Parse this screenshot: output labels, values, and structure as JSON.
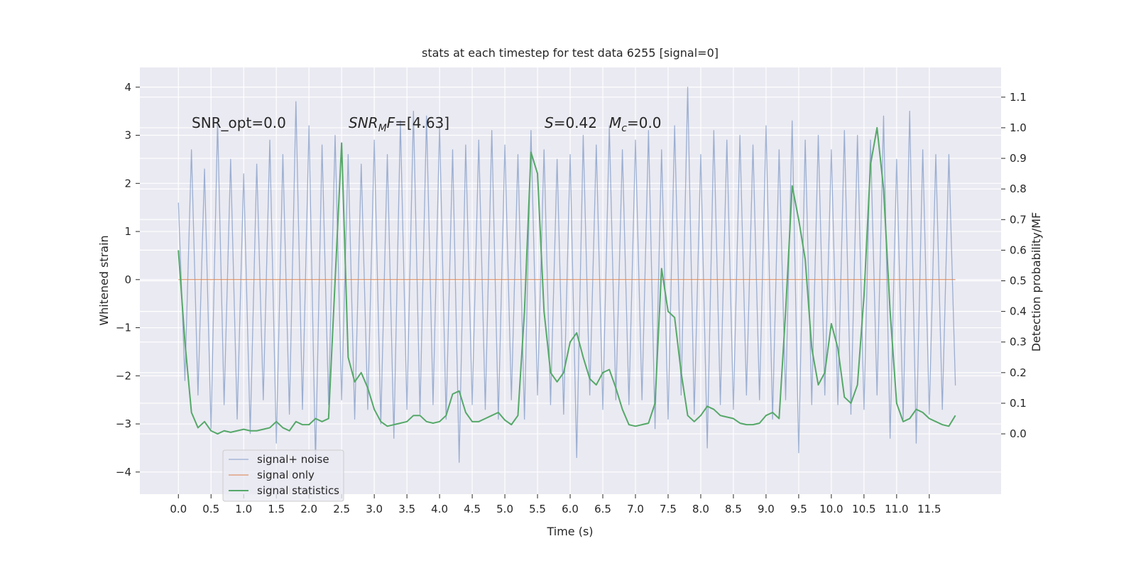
{
  "chart_data": {
    "type": "line",
    "title": "stats at each timestep for test data 6255 [signal=0]",
    "xlabel": "Time (s)",
    "ylabel": "Whitened strain",
    "y2label": "Detection probability/MF",
    "annotations": [
      [
        {
          "text": "SNR_opt=0.0"
        }
      ],
      [
        {
          "text": "SNR",
          "style": "italic"
        },
        {
          "text": "M",
          "style": "italic-sub"
        },
        {
          "text": "F",
          "style": "italic"
        },
        {
          "text": "=[4.63]"
        }
      ],
      [
        {
          "text": "S",
          "style": "italic"
        },
        {
          "text": "=0.42"
        }
      ],
      [
        {
          "text": "M",
          "style": "italic"
        },
        {
          "text": "c",
          "style": "italic-sub"
        },
        {
          "text": "=0.0"
        }
      ]
    ],
    "grid": true,
    "legend_loc": "lower left",
    "xlim": [
      -0.59,
      12.6
    ],
    "ylim": [
      -4.46,
      4.41
    ],
    "y2lim": [
      -0.197,
      1.197
    ],
    "xticks": [
      {
        "value": 0,
        "label": "0.0"
      },
      0.5,
      {
        "value": 1,
        "label": "1.0"
      },
      1.5,
      {
        "value": 2,
        "label": "2.0"
      },
      2.5,
      {
        "value": 3,
        "label": "3.0"
      },
      3.5,
      {
        "value": 4,
        "label": "4.0"
      },
      4.5,
      {
        "value": 5,
        "label": "5.0"
      },
      5.5,
      {
        "value": 6,
        "label": "6.0"
      },
      6.5,
      {
        "value": 7,
        "label": "7.0"
      },
      7.5,
      {
        "value": 8,
        "label": "8.0"
      },
      8.5,
      {
        "value": 9,
        "label": "9.0"
      },
      9.5,
      {
        "value": 10,
        "label": "10.0"
      },
      10.5,
      {
        "value": 11,
        "label": "11.0"
      },
      11.5
    ],
    "yticks": [
      {
        "value": -4,
        "label": "−4"
      },
      {
        "value": -3,
        "label": "−3"
      },
      {
        "value": -2,
        "label": "−2"
      },
      {
        "value": -1,
        "label": "−1"
      },
      0,
      1,
      2,
      3,
      4
    ],
    "y2ticks": [
      {
        "value": 0,
        "label": "0.0"
      },
      0.1,
      0.2,
      0.3,
      0.4,
      0.5,
      0.6,
      0.7,
      0.8,
      0.9,
      {
        "value": 1,
        "label": "1.0"
      },
      1.1
    ],
    "x": [
      0.0,
      0.1,
      0.2,
      0.3,
      0.4,
      0.5,
      0.6,
      0.7,
      0.8,
      0.9,
      1.0,
      1.1,
      1.2,
      1.3,
      1.4,
      1.5,
      1.6,
      1.7,
      1.8,
      1.9,
      2.0,
      2.1,
      2.2,
      2.3,
      2.4,
      2.5,
      2.6,
      2.7,
      2.8,
      2.9,
      3.0,
      3.1,
      3.2,
      3.3,
      3.4,
      3.5,
      3.6,
      3.7,
      3.8,
      3.9,
      4.0,
      4.1,
      4.2,
      4.3,
      4.4,
      4.5,
      4.6,
      4.7,
      4.8,
      4.9,
      5.0,
      5.1,
      5.2,
      5.3,
      5.4,
      5.5,
      5.6,
      5.7,
      5.8,
      5.9,
      6.0,
      6.1,
      6.2,
      6.3,
      6.4,
      6.5,
      6.6,
      6.7,
      6.8,
      6.9,
      7.0,
      7.1,
      7.2,
      7.3,
      7.4,
      7.5,
      7.6,
      7.7,
      7.8,
      7.9,
      8.0,
      8.1,
      8.2,
      8.3,
      8.4,
      8.5,
      8.6,
      8.7,
      8.8,
      8.9,
      9.0,
      9.1,
      9.2,
      9.3,
      9.4,
      9.5,
      9.6,
      9.7,
      9.8,
      9.9,
      10.0,
      10.1,
      10.2,
      10.3,
      10.4,
      10.5,
      10.6,
      10.7,
      10.8,
      10.9,
      11.0,
      11.1,
      11.2,
      11.3,
      11.4,
      11.5,
      11.6,
      11.7,
      11.8,
      11.9
    ],
    "series": [
      {
        "name": "signal+ noise",
        "color": "#4c72b0",
        "values": [
          1.6,
          -2.1,
          2.7,
          -2.4,
          2.3,
          -3.1,
          3.3,
          -2.6,
          2.5,
          -2.9,
          2.2,
          -3.2,
          2.4,
          -2.5,
          2.9,
          -3.4,
          2.6,
          -2.8,
          3.7,
          -2.7,
          3.2,
          -3.8,
          2.8,
          -2.6,
          3.0,
          -2.5,
          2.6,
          -2.9,
          2.4,
          -2.7,
          2.9,
          -3.0,
          2.6,
          -3.3,
          3.3,
          -2.7,
          3.5,
          -2.8,
          3.4,
          -2.6,
          3.2,
          -2.9,
          2.7,
          -3.8,
          2.8,
          -2.6,
          2.9,
          -2.7,
          3.1,
          -2.9,
          2.8,
          -2.5,
          2.6,
          -2.9,
          3.1,
          -2.4,
          2.7,
          -2.6,
          2.5,
          -2.8,
          2.6,
          -3.7,
          3.0,
          -2.4,
          2.8,
          -2.7,
          3.2,
          -2.5,
          2.7,
          -2.6,
          2.9,
          -2.5,
          3.1,
          -3.1,
          2.7,
          -2.9,
          3.2,
          -2.4,
          4.0,
          -2.8,
          2.6,
          -3.5,
          3.1,
          -2.6,
          2.9,
          -2.7,
          3.0,
          -2.4,
          2.8,
          -2.5,
          3.2,
          -2.9,
          2.7,
          -2.5,
          3.3,
          -3.6,
          2.9,
          -2.6,
          3.0,
          -2.4,
          2.7,
          -2.6,
          3.1,
          -2.8,
          3.0,
          -2.7,
          2.9,
          -2.4,
          3.4,
          -3.3,
          2.5,
          -2.9,
          3.5,
          -3.4,
          2.7,
          -2.8,
          2.6,
          -2.7,
          2.6,
          -2.2
        ]
      },
      {
        "name": "signal only",
        "color": "#dd8452",
        "values": [
          0,
          0,
          0,
          0,
          0,
          0,
          0,
          0,
          0,
          0,
          0,
          0,
          0,
          0,
          0,
          0,
          0,
          0,
          0,
          0,
          0,
          0,
          0,
          0,
          0,
          0,
          0,
          0,
          0,
          0,
          0,
          0,
          0,
          0,
          0,
          0,
          0,
          0,
          0,
          0,
          0,
          0,
          0,
          0,
          0,
          0,
          0,
          0,
          0,
          0,
          0,
          0,
          0,
          0,
          0,
          0,
          0,
          0,
          0,
          0,
          0,
          0,
          0,
          0,
          0,
          0,
          0,
          0,
          0,
          0,
          0,
          0,
          0,
          0,
          0,
          0,
          0,
          0,
          0,
          0,
          0,
          0,
          0,
          0,
          0,
          0,
          0,
          0,
          0,
          0,
          0,
          0,
          0,
          0,
          0,
          0,
          0,
          0,
          0,
          0,
          0,
          0,
          0,
          0,
          0,
          0,
          0,
          0,
          0,
          0,
          0,
          0,
          0,
          0,
          0,
          0,
          0,
          0,
          0,
          0
        ]
      },
      {
        "name": "signal statistics",
        "color": "#55a868",
        "axis": "y2",
        "values": [
          0.6,
          0.3,
          0.07,
          0.02,
          0.04,
          0.01,
          0.0,
          0.01,
          0.005,
          0.01,
          0.015,
          0.01,
          0.01,
          0.015,
          0.02,
          0.04,
          0.02,
          0.01,
          0.04,
          0.03,
          0.03,
          0.05,
          0.04,
          0.05,
          0.5,
          0.95,
          0.25,
          0.17,
          0.2,
          0.15,
          0.08,
          0.04,
          0.025,
          0.03,
          0.035,
          0.04,
          0.06,
          0.06,
          0.04,
          0.035,
          0.04,
          0.06,
          0.13,
          0.14,
          0.07,
          0.04,
          0.04,
          0.05,
          0.06,
          0.07,
          0.045,
          0.03,
          0.06,
          0.4,
          0.92,
          0.85,
          0.4,
          0.2,
          0.17,
          0.2,
          0.3,
          0.33,
          0.25,
          0.18,
          0.16,
          0.2,
          0.21,
          0.15,
          0.08,
          0.03,
          0.025,
          0.03,
          0.035,
          0.1,
          0.54,
          0.4,
          0.38,
          0.2,
          0.06,
          0.04,
          0.06,
          0.09,
          0.08,
          0.06,
          0.055,
          0.05,
          0.035,
          0.03,
          0.03,
          0.035,
          0.06,
          0.07,
          0.05,
          0.4,
          0.81,
          0.7,
          0.57,
          0.28,
          0.16,
          0.2,
          0.36,
          0.28,
          0.12,
          0.1,
          0.16,
          0.45,
          0.88,
          1.0,
          0.8,
          0.4,
          0.1,
          0.04,
          0.05,
          0.08,
          0.07,
          0.05,
          0.04,
          0.03,
          0.025,
          0.06
        ]
      }
    ]
  }
}
